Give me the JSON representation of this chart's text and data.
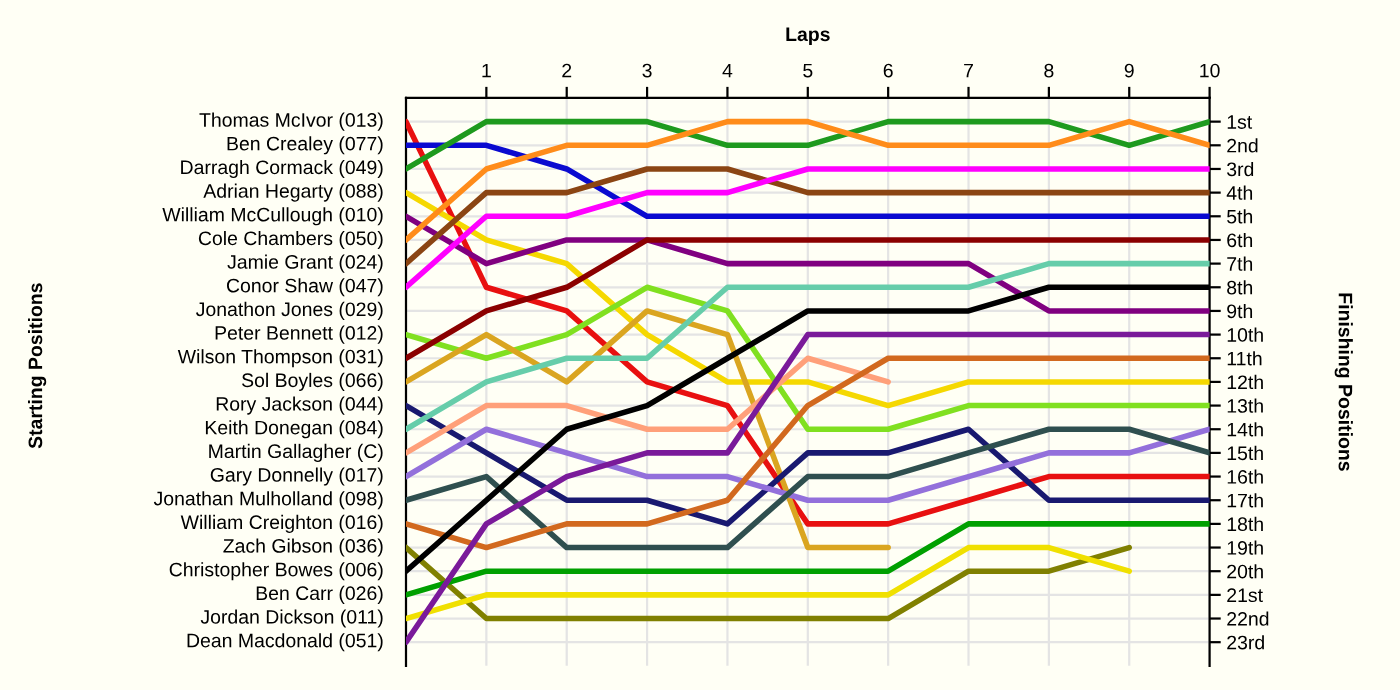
{
  "chart_data": {
    "type": "line",
    "xlabel": "Laps",
    "ylabel": "Finishing Positions",
    "x": [
      0,
      1,
      2,
      3,
      4,
      5,
      6,
      7,
      8,
      9,
      10
    ],
    "xlim": [
      0,
      10
    ],
    "xticks": [
      1,
      2,
      3,
      4,
      5,
      6,
      7,
      8,
      9,
      10
    ],
    "ylim": [
      24,
      0
    ],
    "yticks": [
      {
        "value": 1,
        "label": "1st"
      },
      {
        "value": 2,
        "label": "2nd"
      },
      {
        "value": 3,
        "label": "3rd"
      },
      {
        "value": 4,
        "label": "4th"
      },
      {
        "value": 5,
        "label": "5th"
      },
      {
        "value": 6,
        "label": "6th"
      },
      {
        "value": 7,
        "label": "7th"
      },
      {
        "value": 8,
        "label": "8th"
      },
      {
        "value": 9,
        "label": "9th"
      },
      {
        "value": 10,
        "label": "10th"
      },
      {
        "value": 11,
        "label": "11th"
      },
      {
        "value": 12,
        "label": "12th"
      },
      {
        "value": 13,
        "label": "13th"
      },
      {
        "value": 14,
        "label": "14th"
      },
      {
        "value": 15,
        "label": "15th"
      },
      {
        "value": 16,
        "label": "16th"
      },
      {
        "value": 17,
        "label": "17th"
      },
      {
        "value": 18,
        "label": "18th"
      },
      {
        "value": 19,
        "label": "19th"
      },
      {
        "value": 20,
        "label": "20th"
      },
      {
        "value": 21,
        "label": "21st"
      },
      {
        "value": 22,
        "label": "22nd"
      },
      {
        "value": 23,
        "label": "23rd"
      }
    ],
    "grid": true,
    "legend": "left",
    "annotations": [
      "Starting Positions",
      "Jonathon Jones (029)"
    ],
    "series": [
      {
        "name": "Thomas McIvor (013)",
        "color": "#e81010",
        "values": [
          1,
          8,
          9,
          12,
          13,
          18,
          18,
          17,
          16,
          16,
          16
        ]
      },
      {
        "name": "Ben Crealey (077)",
        "color": "#0a0ad0",
        "values": [
          2,
          2,
          3,
          5,
          5,
          5,
          5,
          5,
          5,
          5,
          5
        ]
      },
      {
        "name": "Darragh Cormack (049)",
        "color": "#1e9a1e",
        "values": [
          3,
          1,
          1,
          1,
          2,
          2,
          1,
          1,
          1,
          2,
          1
        ]
      },
      {
        "name": "Adrian Hegarty (088)",
        "color": "#f5d800",
        "values": [
          4,
          6,
          7,
          10,
          12,
          12,
          13,
          12,
          12,
          12,
          12
        ]
      },
      {
        "name": "William McCullough (010)",
        "color": "#800080",
        "values": [
          5,
          7,
          6,
          6,
          7,
          7,
          7,
          7,
          9,
          9,
          9
        ]
      },
      {
        "name": "Cole Chambers (050)",
        "color": "#ff8c1a",
        "values": [
          6,
          3,
          2,
          2,
          1,
          1,
          2,
          2,
          2,
          1,
          2
        ]
      },
      {
        "name": "Jamie Grant (024)",
        "color": "#8b4513",
        "values": [
          7,
          4,
          4,
          3,
          3,
          4,
          4,
          4,
          4,
          4,
          4
        ]
      },
      {
        "name": "Conor Shaw (047)",
        "color": "#ff00ff",
        "values": [
          8,
          5,
          5,
          4,
          4,
          3,
          3,
          3,
          3,
          3,
          3
        ]
      },
      {
        "name": "Peter Bennett (012)",
        "color": "#80e020",
        "values": [
          10,
          11,
          10,
          8,
          9,
          14,
          14,
          13,
          13,
          13,
          13
        ]
      },
      {
        "name": "Wilson Thompson (031)",
        "color": "#8b0000",
        "values": [
          11,
          9,
          8,
          6,
          6,
          6,
          6,
          6,
          6,
          6,
          6
        ]
      },
      {
        "name": "Sol Boyles (066)",
        "color": "#daa520",
        "values": [
          12,
          10,
          12,
          9,
          10,
          19,
          19,
          null,
          null,
          null,
          null
        ]
      },
      {
        "name": "Rory Jackson (044)",
        "color": "#191970",
        "values": [
          13,
          15,
          17,
          17,
          18,
          15,
          15,
          14,
          17,
          17,
          17
        ]
      },
      {
        "name": "Keith Donegan (084)",
        "color": "#66cdaa",
        "values": [
          14,
          12,
          11,
          11,
          8,
          8,
          8,
          8,
          7,
          7,
          7
        ]
      },
      {
        "name": "Martin Gallagher (C)",
        "color": "#ffa07a",
        "values": [
          15,
          13,
          13,
          14,
          14,
          11,
          12,
          null,
          null,
          null,
          null
        ]
      },
      {
        "name": "Gary Donnelly (017)",
        "color": "#9370db",
        "values": [
          16,
          14,
          15,
          16,
          16,
          17,
          17,
          16,
          15,
          15,
          14
        ]
      },
      {
        "name": "Jonathan Mulholland (098)",
        "color": "#2f4f4f",
        "values": [
          17,
          16,
          19,
          19,
          19,
          16,
          16,
          15,
          14,
          14,
          15
        ]
      },
      {
        "name": "William Creighton (016)",
        "color": "#d2691e",
        "values": [
          18,
          19,
          18,
          18,
          17,
          13,
          11,
          11,
          11,
          11,
          11
        ]
      },
      {
        "name": "Zach Gibson (036)",
        "color": "#808000",
        "values": [
          19,
          22,
          22,
          22,
          22,
          22,
          22,
          20,
          20,
          19,
          null
        ]
      },
      {
        "name": "Christopher Bowes (006)",
        "color": "#000000",
        "values": [
          20,
          17,
          14,
          13,
          11,
          9,
          9,
          9,
          8,
          8,
          8
        ]
      },
      {
        "name": "Ben Carr (026)",
        "color": "#00a000",
        "values": [
          21,
          20,
          20,
          20,
          20,
          20,
          20,
          18,
          18,
          18,
          18
        ]
      },
      {
        "name": "Jordan Dickson (011)",
        "color": "#f0e000",
        "values": [
          22,
          21,
          21,
          21,
          21,
          21,
          21,
          19,
          19,
          20,
          null
        ]
      },
      {
        "name": "Dean Macdonald (051)",
        "color": "#7a1a9a",
        "values": [
          23,
          18,
          16,
          15,
          15,
          10,
          10,
          10,
          10,
          10,
          10
        ]
      }
    ]
  }
}
